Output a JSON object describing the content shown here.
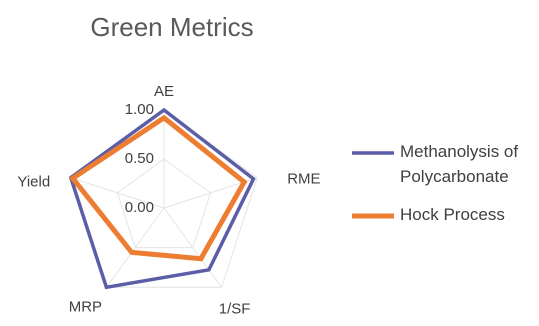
{
  "chart_data": {
    "type": "radar",
    "title": "Green Metrics",
    "axes": [
      "AE",
      "RME",
      "1/SF",
      "MRP",
      "Yield"
    ],
    "ticks": [
      "0.00",
      "0.50",
      "1.00"
    ],
    "range": [
      0,
      1
    ],
    "grid": true,
    "legend_position": "right",
    "series": [
      {
        "name": "Methanolysis of Polycarbonate",
        "name_lines": [
          "Methanolysis of",
          "Polycarbonate"
        ],
        "values": [
          1.0,
          0.96,
          0.78,
          1.0,
          1.0
        ],
        "color": "#5b5ea6"
      },
      {
        "name": "Hock Process",
        "name_lines": [
          "Hock Process"
        ],
        "values": [
          0.92,
          0.86,
          0.64,
          0.56,
          0.98
        ],
        "color": "#ed7d31"
      }
    ]
  }
}
